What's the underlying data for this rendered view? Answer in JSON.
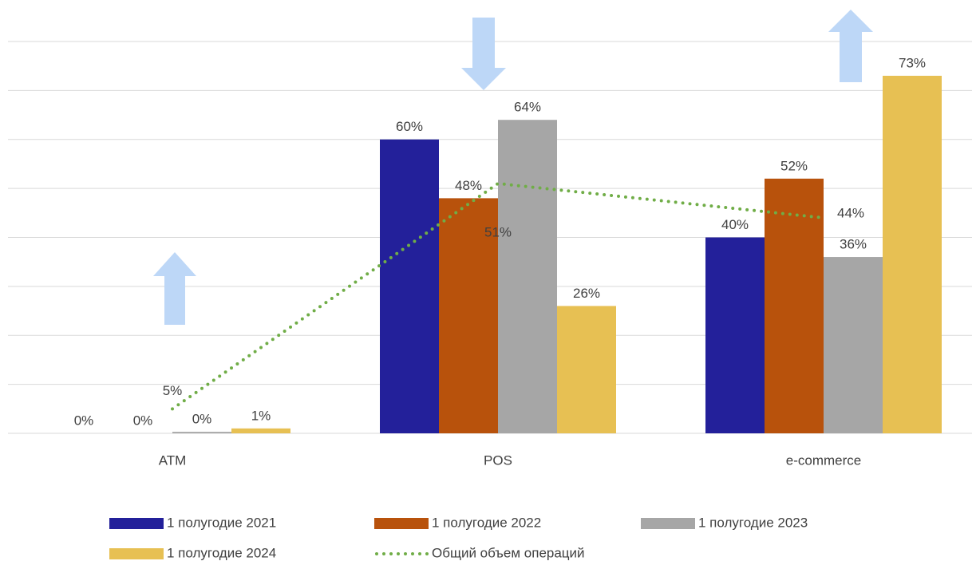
{
  "chart_data": {
    "type": "bar",
    "categories": [
      "ATM",
      "POS",
      "e-commerce"
    ],
    "series": [
      {
        "name": "1 полугодие 2021",
        "color": "#23209a",
        "values": [
          0,
          60,
          40
        ],
        "value_labels": [
          "0%",
          "60%",
          "40%"
        ]
      },
      {
        "name": "1 полугодие 2022",
        "color": "#b8520c",
        "values": [
          0,
          48,
          52
        ],
        "value_labels": [
          "0%",
          "48%",
          "52%"
        ]
      },
      {
        "name": "1 полугодие 2023",
        "color": "#a6a6a6",
        "values": [
          0.3,
          64,
          36
        ],
        "value_labels": [
          "0%",
          "64%",
          "36%"
        ]
      },
      {
        "name": "1 полугодие 2024",
        "color": "#e7c053",
        "values": [
          1,
          26,
          73
        ],
        "value_labels": [
          "1%",
          "26%",
          "73%"
        ]
      },
      {
        "name": "Общий объем операций",
        "color": "#70ad47",
        "type": "line",
        "values": [
          5,
          51,
          44
        ],
        "value_labels": [
          "5%",
          "51%",
          "44%"
        ]
      }
    ],
    "ylim": [
      0,
      80
    ],
    "yticks": [
      0,
      10,
      20,
      30,
      40,
      50,
      60,
      70,
      80
    ],
    "grid": true
  }
}
